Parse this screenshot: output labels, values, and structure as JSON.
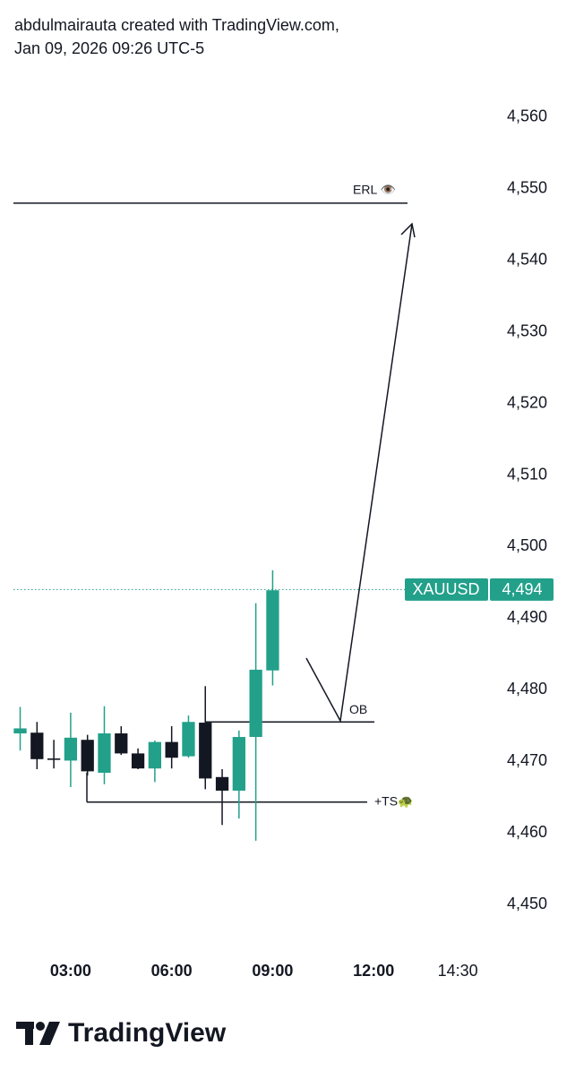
{
  "header": {
    "line1": "abdulmairauta created with TradingView.com,",
    "line2": "Jan 09, 2026 09:26 UTC-5"
  },
  "chart_data": {
    "type": "candlestick",
    "series": [
      {
        "name": "XAUUSD",
        "up_color": "#22a08a",
        "down_color": "#131722",
        "x": [
          1.5,
          2,
          2.5,
          3,
          3.5,
          4,
          4.5,
          5,
          5.5,
          6,
          6.5,
          7,
          7.5,
          8,
          8.5,
          9
        ],
        "open": [
          4473.9,
          4474.0,
          4470.4,
          4470.1,
          4473.0,
          4468.4,
          4473.9,
          4471.1,
          4469.0,
          4472.7,
          4470.7,
          4475.4,
          4467.8,
          4465.9,
          4473.4,
          4482.7
        ],
        "high": [
          4477.6,
          4475.5,
          4473.0,
          4476.8,
          4473.7,
          4477.7,
          4474.9,
          4471.8,
          4472.9,
          4474.9,
          4476.4,
          4480.5,
          4468.9,
          4474.3,
          4492.1,
          4496.7
        ],
        "low": [
          4471.5,
          4468.9,
          4469.0,
          4466.4,
          4468.0,
          4466.8,
          4470.9,
          4468.9,
          4467.1,
          4469.0,
          4470.5,
          4466.1,
          4461.1,
          4462.0,
          4458.9,
          4480.6
        ],
        "close": [
          4474.6,
          4470.3,
          4470.2,
          4473.3,
          4468.6,
          4473.9,
          4471.1,
          4469.0,
          4472.7,
          4470.5,
          4475.5,
          4467.6,
          4465.9,
          4473.4,
          4482.8,
          4493.9
        ]
      }
    ],
    "price_label": {
      "value": 4494,
      "label": "4,494",
      "color": "#22a08a"
    },
    "levels": [
      {
        "label": "ERL 👁️",
        "value": 4548.0
      },
      {
        "label": "OB",
        "value": 4475.5
      },
      {
        "label": "+TS🐢",
        "value": 4464.3
      }
    ],
    "xlim": [
      1.3,
      15.4
    ],
    "xticks": [
      {
        "value": 3,
        "label": "03:00"
      },
      {
        "value": 6,
        "label": "06:00"
      },
      {
        "value": 9,
        "label": "09:00"
      },
      {
        "value": 12,
        "label": "12:00"
      },
      {
        "value": 14.5,
        "label": "14:30"
      }
    ],
    "ylim": [
      4445,
      4567
    ],
    "yticks": [
      {
        "value": 4450,
        "label": "4,450"
      },
      {
        "value": 4460,
        "label": "4,460"
      },
      {
        "value": 4470,
        "label": "4,470"
      },
      {
        "value": 4480,
        "label": "4,480"
      },
      {
        "value": 4490,
        "label": "4,490"
      },
      {
        "value": 4500,
        "label": "4,500"
      },
      {
        "value": 4510,
        "label": "4,510"
      },
      {
        "value": 4520,
        "label": "4,520"
      },
      {
        "value": 4530,
        "label": "4,530"
      },
      {
        "value": 4540,
        "label": "4,540"
      },
      {
        "value": 4550,
        "label": "4,550"
      },
      {
        "value": 4560,
        "label": "4,560"
      }
    ]
  },
  "footer": {
    "brand": "TradingView"
  }
}
